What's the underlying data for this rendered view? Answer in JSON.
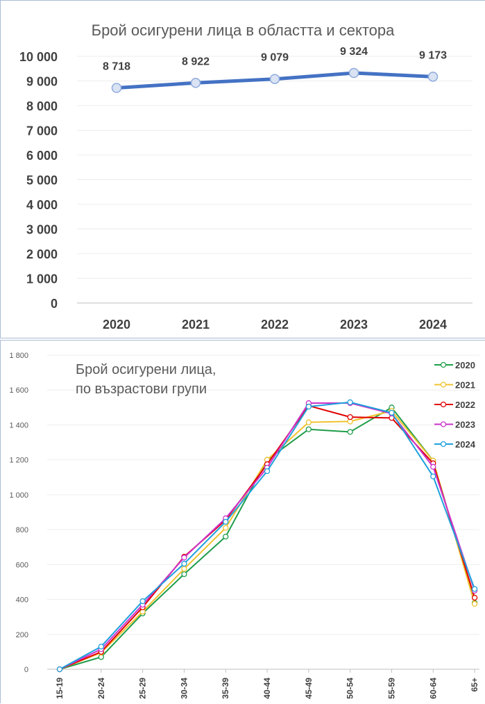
{
  "chart_data": [
    {
      "type": "line",
      "title": "Брой осигурени лица в областта и сектора",
      "categories": [
        "2020",
        "2021",
        "2022",
        "2023",
        "2024"
      ],
      "series": [
        {
          "values": [
            8718,
            8922,
            9079,
            9324,
            9173
          ]
        }
      ],
      "data_labels": [
        "8 718",
        "8 922",
        "9 079",
        "9 324",
        "9 173"
      ],
      "y_ticks": [
        "0",
        "1 000",
        "2 000",
        "3 000",
        "4 000",
        "5 000",
        "6 000",
        "7 000",
        "8 000",
        "9 000",
        "10 000"
      ],
      "ylim": [
        0,
        10000
      ],
      "grid": true,
      "line_color": "#4472c4",
      "marker_color": "#dae3f3"
    },
    {
      "type": "line",
      "title_lines": [
        "Брой осигурени лица,",
        "по възрастови групи"
      ],
      "categories": [
        "15-19",
        "20-24",
        "25-29",
        "30-34",
        "35-39",
        "40-44",
        "45-49",
        "50-54",
        "55-59",
        "60-64",
        "65+"
      ],
      "series": [
        {
          "name": "2020",
          "color": "#1f9d4b",
          "values": [
            0,
            70,
            320,
            545,
            760,
            1200,
            1375,
            1360,
            1500,
            1195,
            380
          ]
        },
        {
          "name": "2021",
          "color": "#f0c330",
          "values": [
            0,
            95,
            330,
            575,
            810,
            1200,
            1415,
            1420,
            1480,
            1195,
            375
          ]
        },
        {
          "name": "2022",
          "color": "#e00000",
          "values": [
            0,
            100,
            355,
            645,
            855,
            1175,
            1510,
            1445,
            1440,
            1180,
            410
          ]
        },
        {
          "name": "2023",
          "color": "#cc33cc",
          "values": [
            0,
            115,
            370,
            640,
            865,
            1155,
            1525,
            1525,
            1465,
            1160,
            450
          ]
        },
        {
          "name": "2024",
          "color": "#1ea0dc",
          "values": [
            0,
            130,
            390,
            605,
            845,
            1135,
            1505,
            1530,
            1470,
            1105,
            460
          ]
        }
      ],
      "y_ticks": [
        "0",
        "200",
        "400",
        "600",
        "800",
        "1 000",
        "1 200",
        "1 400",
        "1 600",
        "1 800"
      ],
      "ylim": [
        0,
        1800
      ],
      "grid": true,
      "legend_position": "top-right"
    }
  ]
}
